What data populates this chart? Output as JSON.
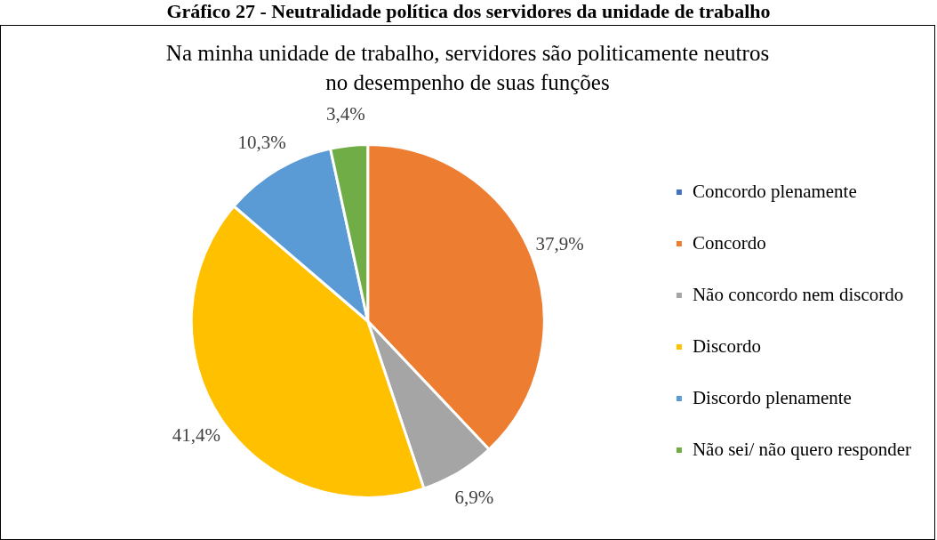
{
  "chart_data": {
    "type": "pie",
    "title": "Gráfico 27 - Neutralidade política dos servidores da unidade de trabalho",
    "subtitle": "Na minha unidade de trabalho, servidores são politicamente neutros no desempenho de suas funções",
    "categories": [
      "Concordo plenamente",
      "Concordo",
      "Não concordo nem discordo",
      "Discordo",
      "Discordo plenamente",
      "Não sei/ não quero responder"
    ],
    "values": [
      0,
      37.9,
      6.9,
      41.4,
      10.3,
      3.4
    ],
    "colors": [
      "#4472c4",
      "#ed7d31",
      "#a5a5a5",
      "#ffc000",
      "#5b9bd5",
      "#70ad47"
    ],
    "value_labels": [
      null,
      "37,9%",
      "6,9%",
      "41,4%",
      "10,3%",
      "3,4%"
    ],
    "legend": "right"
  }
}
